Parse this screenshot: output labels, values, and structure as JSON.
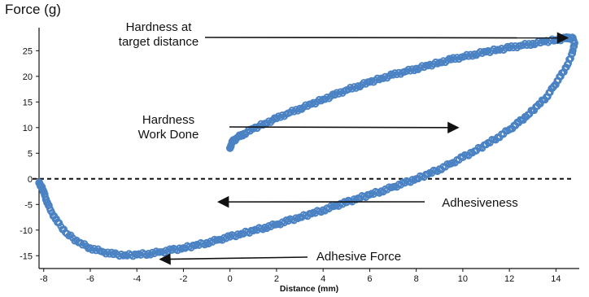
{
  "chart_data": {
    "type": "scatter",
    "title": "",
    "xlabel": "Distance (mm)",
    "ylabel": "Force (g)",
    "xlim": [
      -8.2,
      15.0
    ],
    "ylim": [
      -17.5,
      29.5
    ],
    "xticks": [
      -8,
      -6,
      -4,
      -2,
      0,
      2,
      4,
      6,
      8,
      10,
      12,
      14
    ],
    "yticks": [
      -15,
      -10,
      -5,
      0,
      5,
      10,
      15,
      20,
      25
    ],
    "marker_color": "#4a82c3",
    "zero_line": "dashed",
    "series": [
      {
        "points": [
          [
            0.0,
            6.0
          ],
          [
            0.1,
            7.2
          ],
          [
            0.3,
            8.0
          ],
          [
            0.6,
            8.8
          ],
          [
            1.0,
            9.8
          ],
          [
            1.5,
            10.8
          ],
          [
            2.0,
            11.8
          ],
          [
            2.5,
            12.8
          ],
          [
            3.0,
            13.7
          ],
          [
            3.5,
            14.6
          ],
          [
            4.0,
            15.5
          ],
          [
            4.5,
            16.4
          ],
          [
            5.0,
            17.3
          ],
          [
            5.5,
            18.1
          ],
          [
            6.0,
            18.9
          ],
          [
            6.5,
            19.6
          ],
          [
            7.0,
            20.3
          ],
          [
            7.5,
            20.9
          ],
          [
            8.0,
            21.5
          ],
          [
            8.5,
            22.1
          ],
          [
            9.0,
            22.7
          ],
          [
            9.5,
            23.3
          ],
          [
            10.0,
            23.8
          ],
          [
            10.5,
            24.3
          ],
          [
            11.0,
            24.8
          ],
          [
            11.5,
            25.2
          ],
          [
            12.0,
            25.6
          ],
          [
            12.5,
            26.0
          ],
          [
            13.0,
            26.4
          ],
          [
            13.5,
            26.8
          ],
          [
            14.0,
            27.1
          ],
          [
            14.4,
            27.4
          ],
          [
            14.7,
            27.6
          ],
          [
            14.8,
            26.5
          ],
          [
            14.7,
            24.5
          ],
          [
            14.5,
            22.3
          ],
          [
            14.2,
            20.0
          ],
          [
            13.9,
            18.0
          ],
          [
            13.6,
            16.0
          ],
          [
            13.2,
            14.2
          ],
          [
            12.8,
            12.5
          ],
          [
            12.4,
            11.0
          ],
          [
            12.0,
            9.6
          ],
          [
            11.5,
            8.1
          ],
          [
            11.0,
            6.7
          ],
          [
            10.5,
            5.4
          ],
          [
            10.0,
            4.2
          ],
          [
            9.5,
            3.0
          ],
          [
            9.0,
            1.9
          ],
          [
            8.5,
            0.9
          ],
          [
            8.0,
            0.0
          ],
          [
            7.5,
            -0.8
          ],
          [
            7.0,
            -1.6
          ],
          [
            6.5,
            -2.4
          ],
          [
            6.0,
            -3.1
          ],
          [
            5.5,
            -3.8
          ],
          [
            5.0,
            -4.6
          ],
          [
            4.5,
            -5.3
          ],
          [
            4.0,
            -6.1
          ],
          [
            3.5,
            -6.8
          ],
          [
            3.0,
            -7.5
          ],
          [
            2.5,
            -8.2
          ],
          [
            2.0,
            -8.9
          ],
          [
            1.5,
            -9.5
          ],
          [
            1.0,
            -10.1
          ],
          [
            0.5,
            -10.7
          ],
          [
            0.0,
            -11.3
          ],
          [
            -0.5,
            -11.9
          ],
          [
            -1.0,
            -12.5
          ],
          [
            -1.5,
            -13.0
          ],
          [
            -2.0,
            -13.5
          ],
          [
            -2.5,
            -13.9
          ],
          [
            -3.0,
            -14.3
          ],
          [
            -3.5,
            -14.6
          ],
          [
            -4.0,
            -14.8
          ],
          [
            -4.5,
            -14.9
          ],
          [
            -5.0,
            -14.7
          ],
          [
            -5.5,
            -14.2
          ],
          [
            -6.0,
            -13.5
          ],
          [
            -6.5,
            -12.4
          ],
          [
            -7.0,
            -10.7
          ],
          [
            -7.4,
            -8.5
          ],
          [
            -7.7,
            -6.2
          ],
          [
            -7.9,
            -4.0
          ],
          [
            -8.0,
            -2.5
          ],
          [
            -8.1,
            -1.5
          ],
          [
            -8.2,
            -0.8
          ]
        ]
      }
    ],
    "annotations": [
      {
        "id": "hardness_target",
        "lines": [
          "Hardness at",
          "target distance"
        ],
        "arrow_to": [
          14.5,
          27.5
        ]
      },
      {
        "id": "hardness_work",
        "lines": [
          "Hardness",
          "Work Done"
        ],
        "arrow_to": [
          9.8,
          10.0
        ]
      },
      {
        "id": "adhesiveness",
        "lines": [
          "Adhesiveness"
        ],
        "arrow_to": [
          -0.5,
          -4.5
        ]
      },
      {
        "id": "adhesive_force",
        "lines": [
          "Adhesive Force"
        ],
        "arrow_to": [
          -3.0,
          -15.7
        ]
      }
    ]
  }
}
